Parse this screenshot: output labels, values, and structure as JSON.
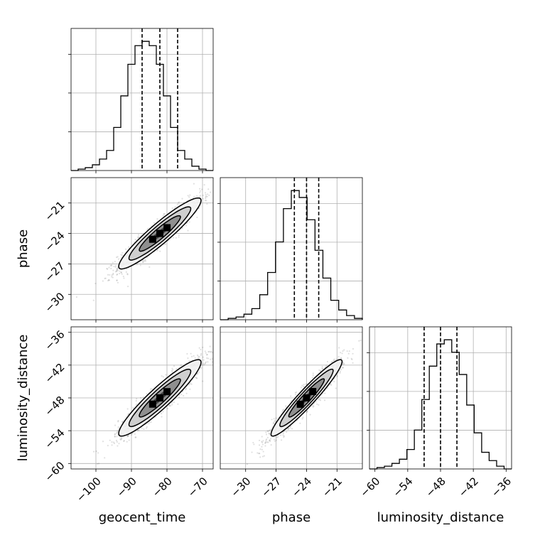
{
  "chart_data": {
    "type": "corner",
    "parameters": [
      "geocent_time",
      "phase",
      "luminosity_distance"
    ],
    "axes": {
      "geocent_time": {
        "range": [
          -107,
          -67
        ],
        "ticks": [
          -100,
          -90,
          -80,
          -70
        ]
      },
      "phase": {
        "range": [
          -32.5,
          -18.5
        ],
        "ticks": [
          -30,
          -27,
          -24,
          -21
        ]
      },
      "luminosity_distance": {
        "range": [
          -61,
          -35
        ],
        "ticks": [
          -60,
          -54,
          -48,
          -42,
          -36
        ]
      }
    },
    "tick_labels": {
      "geocent_time": [
        "−100",
        "−90",
        "−80",
        "−70"
      ],
      "phase": [
        "−30",
        "−27",
        "−24",
        "−21"
      ],
      "luminosity_distance": [
        "−60",
        "−54",
        "−48",
        "−42",
        "−36"
      ]
    },
    "histograms": [
      {
        "parameter": "geocent_time",
        "bins_range": [
          -107,
          -67
        ],
        "counts": [
          0,
          1,
          2,
          4,
          8,
          14,
          30,
          52,
          74,
          87,
          90,
          87,
          74,
          52,
          30,
          14,
          8,
          3,
          1,
          0
        ],
        "quantiles": [
          -87,
          -82,
          -77
        ]
      },
      {
        "parameter": "phase",
        "bins_range": [
          -32.5,
          -18.5
        ],
        "counts": [
          0,
          1,
          2,
          4,
          8,
          18,
          34,
          56,
          80,
          93,
          88,
          72,
          50,
          30,
          14,
          7,
          3,
          1
        ],
        "quantiles": [
          -25.2,
          -24.0,
          -22.8
        ]
      },
      {
        "parameter": "luminosity_distance",
        "bins_range": [
          -61,
          -35
        ],
        "counts": [
          0,
          1,
          2,
          4,
          7,
          14,
          28,
          50,
          74,
          90,
          93,
          84,
          68,
          46,
          26,
          12,
          6,
          2,
          0
        ],
        "quantiles": [
          -51,
          -48,
          -45
        ]
      }
    ],
    "pairs": [
      {
        "x": "geocent_time",
        "y": "phase",
        "correlation": 0.93,
        "mean": [
          -82,
          -24.0
        ],
        "sd": [
          5.8,
          1.75
        ]
      },
      {
        "x": "geocent_time",
        "y": "luminosity_distance",
        "correlation": 0.93,
        "mean": [
          -82,
          -48
        ],
        "sd": [
          5.8,
          3.5
        ]
      },
      {
        "x": "phase",
        "y": "luminosity_distance",
        "correlation": 0.95,
        "mean": [
          -24.0,
          -48
        ],
        "sd": [
          1.75,
          3.5
        ]
      }
    ],
    "contour_levels_sigma": [
      0.5,
      1.0,
      1.5,
      2.0
    ],
    "grid": true
  }
}
